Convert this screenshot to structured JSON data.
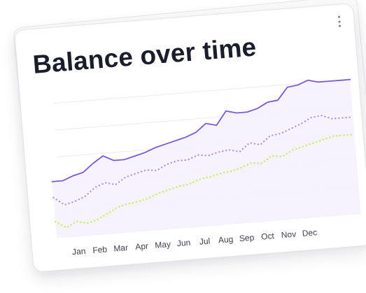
{
  "card": {
    "title": "Balance over time",
    "menu_icon": "more-vertical-icon"
  },
  "colors": {
    "series_1": "#7a5ad8",
    "series_2": "#a58ae2",
    "series_3": "#b8ee5a",
    "grid": "#ececf1",
    "area_fill": "#f5f1fe",
    "tick_label": "#3e4150"
  },
  "chart_data": {
    "type": "line",
    "title": "Balance over time",
    "xlabel": "",
    "ylabel": "",
    "grid": true,
    "legend": "none",
    "x_tick_labels": [
      "Jan",
      "Feb",
      "Mar",
      "Apr",
      "May",
      "Jun",
      "Jul",
      "Aug",
      "Sep",
      "Oct",
      "Nov",
      "Dec"
    ],
    "x": [
      0,
      0.5,
      1,
      1.5,
      2,
      2.5,
      3,
      3.5,
      4,
      4.5,
      5,
      5.5,
      6,
      6.5,
      7,
      7.5,
      8,
      8.5,
      9,
      9.5,
      10,
      10.5,
      11,
      11.5,
      12,
      12.5,
      13,
      13.5,
      14,
      14.5
    ],
    "xlim": [
      0,
      14.5
    ],
    "ylim": [
      0,
      100
    ],
    "series": [
      {
        "style": "solid",
        "values": [
          42,
          42,
          45,
          47,
          53,
          58,
          54,
          54,
          56,
          58,
          61,
          63,
          65,
          67,
          70,
          76,
          74,
          84,
          82,
          82,
          84,
          88,
          89,
          98,
          99,
          102,
          100,
          100,
          100,
          100
        ]
      },
      {
        "style": "dotted",
        "values": [
          30,
          24,
          26,
          29,
          35,
          38,
          36,
          41,
          43,
          45,
          44,
          48,
          50,
          50,
          53,
          52,
          54,
          55,
          53,
          59,
          57,
          63,
          64,
          67,
          70,
          74,
          75,
          72,
          72,
          72
        ]
      },
      {
        "style": "dotted",
        "values": [
          12,
          7,
          11,
          9,
          11,
          15,
          19,
          21,
          22,
          24,
          27,
          29,
          31,
          32,
          35,
          36,
          38,
          39,
          41,
          44,
          43,
          48,
          47,
          51,
          53,
          55,
          57,
          59,
          59,
          59
        ]
      }
    ]
  }
}
